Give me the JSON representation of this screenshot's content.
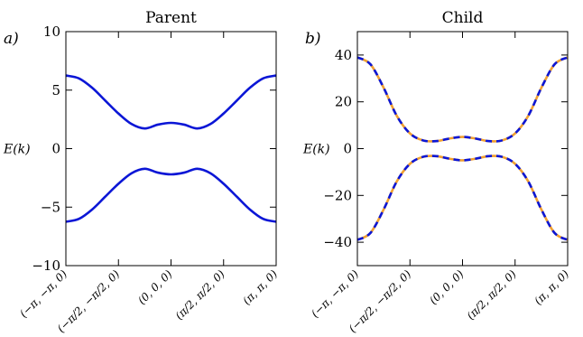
{
  "chart_data": [
    {
      "type": "line",
      "panel_label": "a)",
      "title": "Parent",
      "xlabel": "",
      "ylabel": "E(k)",
      "ylim": [
        -10,
        10
      ],
      "yticks": [
        -10,
        -5,
        0,
        5,
        10
      ],
      "ytick_labels": [
        "−10",
        "−5",
        "0",
        "5",
        "10"
      ],
      "xlim": [
        0,
        4
      ],
      "xticks": [
        0,
        1,
        2,
        3,
        4
      ],
      "xtick_labels": [
        "(−π, −π, 0)",
        "(−π/2, −π/2, 0)",
        "(0, 0, 0)",
        "(π/2, π/2, 0)",
        "(π, π, 0)"
      ],
      "series": [
        {
          "color": "#0b16d6",
          "style": "solid",
          "x": [
            0,
            0.25,
            0.5,
            0.75,
            1,
            1.25,
            1.5,
            1.75,
            2,
            2.25,
            2.5,
            2.75,
            3,
            3.25,
            3.5,
            3.75,
            4
          ],
          "values": [
            6.25,
            6.0,
            5.2,
            4.1,
            3.0,
            2.1,
            1.72,
            2.05,
            2.2,
            2.05,
            1.72,
            2.1,
            3.0,
            4.1,
            5.2,
            6.0,
            6.25
          ]
        },
        {
          "color": "#0b16d6",
          "style": "solid",
          "x": [
            0,
            0.25,
            0.5,
            0.75,
            1,
            1.25,
            1.5,
            1.75,
            2,
            2.25,
            2.5,
            2.75,
            3,
            3.25,
            3.5,
            3.75,
            4
          ],
          "values": [
            -6.25,
            -6.0,
            -5.2,
            -4.1,
            -3.0,
            -2.1,
            -1.72,
            -2.05,
            -2.2,
            -2.05,
            -1.72,
            -2.1,
            -3.0,
            -4.1,
            -5.2,
            -6.0,
            -6.25
          ]
        }
      ],
      "grid": false
    },
    {
      "type": "line",
      "panel_label": "b)",
      "title": "Child",
      "xlabel": "",
      "ylabel": "E(k)",
      "ylim": [
        -50,
        50
      ],
      "yticks": [
        -40,
        -20,
        0,
        20,
        40
      ],
      "ytick_labels": [
        "−40",
        "−20",
        "0",
        "20",
        "40"
      ],
      "xlim": [
        0,
        4
      ],
      "xticks": [
        0,
        1,
        2,
        3,
        4
      ],
      "xtick_labels": [
        "(−π, −π, 0)",
        "(−π/2, −π/2, 0)",
        "(0, 0, 0)",
        "(π/2, π/2, 0)",
        "(π, π, 0)"
      ],
      "series": [
        {
          "color": "#f0a030",
          "style": "solid",
          "x": [
            0,
            0.25,
            0.5,
            0.75,
            1,
            1.25,
            1.5,
            1.75,
            2,
            2.25,
            2.5,
            2.75,
            3,
            3.25,
            3.5,
            3.75,
            4
          ],
          "values": [
            39.0,
            36.0,
            26.0,
            14.0,
            6.5,
            3.5,
            3.2,
            4.3,
            5.0,
            4.3,
            3.2,
            3.5,
            6.5,
            14.0,
            26.0,
            36.0,
            39.0
          ]
        },
        {
          "color": "#f0a030",
          "style": "solid",
          "x": [
            0,
            0.25,
            0.5,
            0.75,
            1,
            1.25,
            1.5,
            1.75,
            2,
            2.25,
            2.5,
            2.75,
            3,
            3.25,
            3.5,
            3.75,
            4
          ],
          "values": [
            -39.0,
            -36.0,
            -26.0,
            -14.0,
            -6.5,
            -3.5,
            -3.2,
            -4.3,
            -5.0,
            -4.3,
            -3.2,
            -3.5,
            -6.5,
            -14.0,
            -26.0,
            -36.0,
            -39.0
          ]
        },
        {
          "color": "#0b16d6",
          "style": "dashed",
          "x": [
            0,
            0.25,
            0.5,
            0.75,
            1,
            1.25,
            1.5,
            1.75,
            2,
            2.25,
            2.5,
            2.75,
            3,
            3.25,
            3.5,
            3.75,
            4
          ],
          "values": [
            39.0,
            36.0,
            26.0,
            14.0,
            6.5,
            3.5,
            3.2,
            4.3,
            5.0,
            4.3,
            3.2,
            3.5,
            6.5,
            14.0,
            26.0,
            36.0,
            39.0
          ]
        },
        {
          "color": "#0b16d6",
          "style": "dashed",
          "x": [
            0,
            0.25,
            0.5,
            0.75,
            1,
            1.25,
            1.5,
            1.75,
            2,
            2.25,
            2.5,
            2.75,
            3,
            3.25,
            3.5,
            3.75,
            4
          ],
          "values": [
            -39.0,
            -36.0,
            -26.0,
            -14.0,
            -6.5,
            -3.5,
            -3.2,
            -4.3,
            -5.0,
            -4.3,
            -3.2,
            -3.5,
            -6.5,
            -14.0,
            -26.0,
            -36.0,
            -39.0
          ]
        }
      ],
      "grid": false
    }
  ]
}
